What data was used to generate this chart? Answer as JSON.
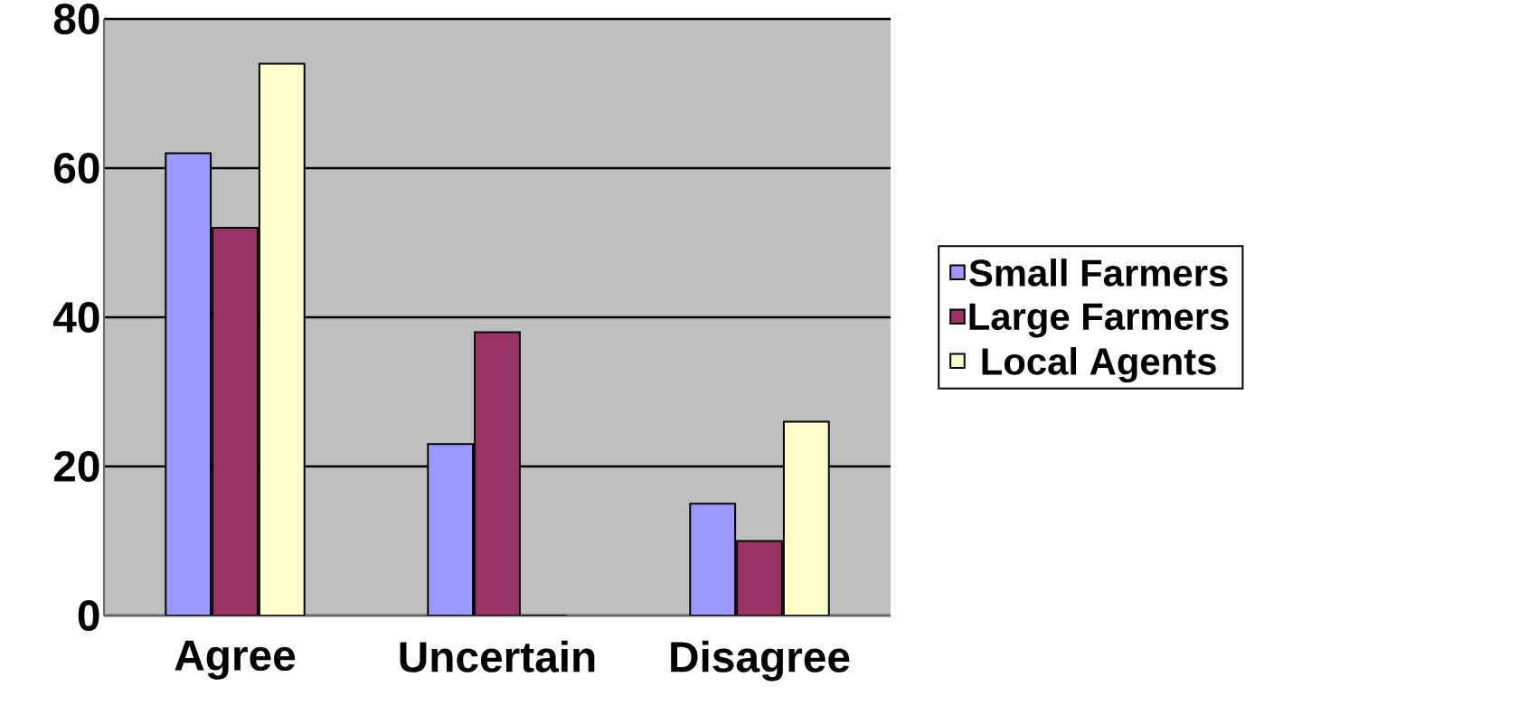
{
  "chart_data": {
    "type": "bar",
    "categories": [
      "Agree",
      "Uncertain",
      "Disagree"
    ],
    "series": [
      {
        "name": "Small Farmers",
        "color": "#9999ff",
        "values": [
          62,
          23,
          15
        ]
      },
      {
        "name": "Large Farmers",
        "color": "#993366",
        "values": [
          52,
          38,
          10
        ]
      },
      {
        "name": "Local Agents",
        "color": "#ffffcc",
        "values": [
          74,
          0,
          26
        ]
      }
    ],
    "ylim": [
      0,
      80
    ],
    "yticks": [
      0,
      20,
      40,
      60,
      80
    ],
    "grid": "y",
    "legend": "right"
  }
}
